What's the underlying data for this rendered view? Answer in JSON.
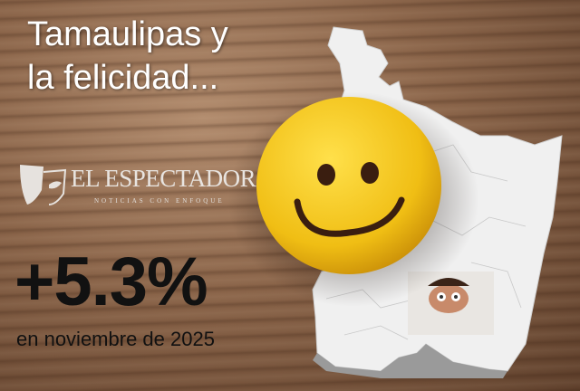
{
  "headline": "Tamaulipas y la felicidad...",
  "headline_lines": [
    "Tamaulipas y",
    "la felicidad..."
  ],
  "logo": {
    "name": "EL ESPECTADOR",
    "tagline": "NOTICIAS CON ENFOQUE"
  },
  "stat": {
    "value": "+5.3%",
    "caption": "en noviembre de 2025"
  },
  "colors": {
    "smiley": "#f2c81c",
    "map": "#f2f2f2",
    "text_dark": "#111111",
    "text_light": "#ffffff"
  }
}
